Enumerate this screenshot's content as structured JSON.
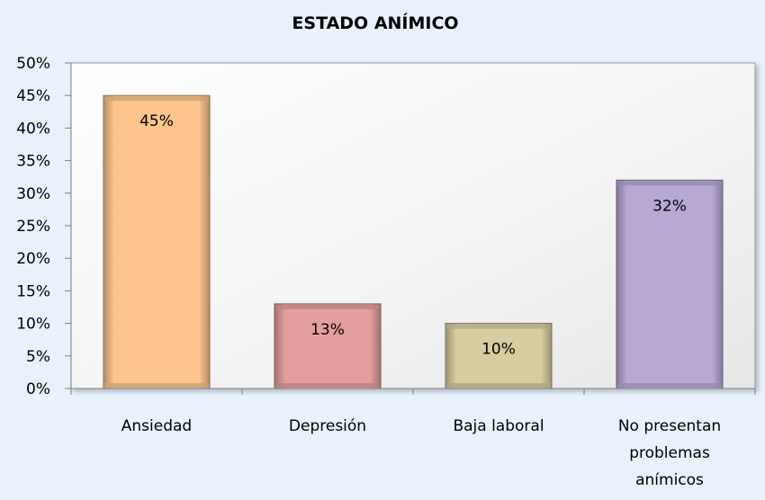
{
  "chart_data": {
    "type": "bar",
    "title": "ESTADO ANÍMICO",
    "categories": [
      "Ansiedad",
      "Depresión",
      "Baja laboral",
      "No presentan problemas anímicos"
    ],
    "category_lines": [
      [
        "Ansiedad"
      ],
      [
        "Depresión"
      ],
      [
        "Baja laboral"
      ],
      [
        "No presentan",
        "problemas",
        "anímicos"
      ]
    ],
    "values": [
      45,
      13,
      10,
      32
    ],
    "value_labels": [
      "45%",
      "13%",
      "10%",
      "32%"
    ],
    "colors": [
      "#fcc48e",
      "#e39e9d",
      "#d6cc9f",
      "#b8a8d6"
    ],
    "ylim": [
      0,
      50
    ],
    "yticks": [
      0,
      5,
      10,
      15,
      20,
      25,
      30,
      35,
      40,
      45,
      50
    ],
    "ytick_labels": [
      "0%",
      "5%",
      "10%",
      "15%",
      "20%",
      "25%",
      "30%",
      "35%",
      "40%",
      "45%",
      "50%"
    ],
    "grid": false,
    "legend": "none"
  }
}
